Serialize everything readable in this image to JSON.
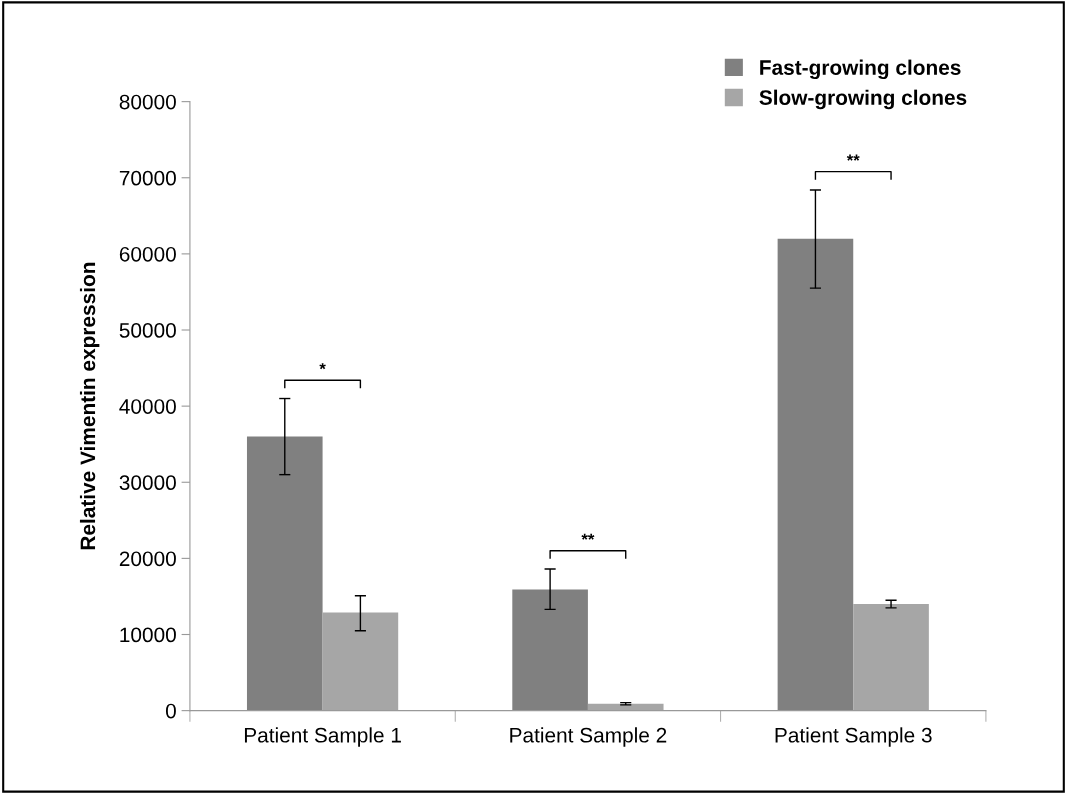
{
  "chart_data": {
    "type": "bar",
    "ylabel": "Relative Vimentin expression",
    "categories": [
      "Patient Sample 1",
      "Patient Sample 2",
      "Patient Sample 3"
    ],
    "series": [
      {
        "name": "Fast-growing clones",
        "color": "#808080",
        "values": [
          36000,
          15900,
          62000
        ],
        "errors": [
          [
            31000,
            41000
          ],
          [
            13300,
            18600
          ],
          [
            55500,
            68400
          ]
        ]
      },
      {
        "name": "Slow-growing clones",
        "color": "#a6a6a6",
        "values": [
          12900,
          900,
          14000
        ],
        "errors": [
          [
            10500,
            15100
          ],
          [
            750,
            1050
          ],
          [
            13500,
            14500
          ]
        ]
      }
    ],
    "ylim": [
      0,
      80000
    ],
    "yticks": [
      0,
      10000,
      20000,
      30000,
      40000,
      50000,
      60000,
      70000,
      80000
    ],
    "annotations": [
      "*",
      "**",
      "**"
    ],
    "grid": false,
    "legend": "top right"
  }
}
